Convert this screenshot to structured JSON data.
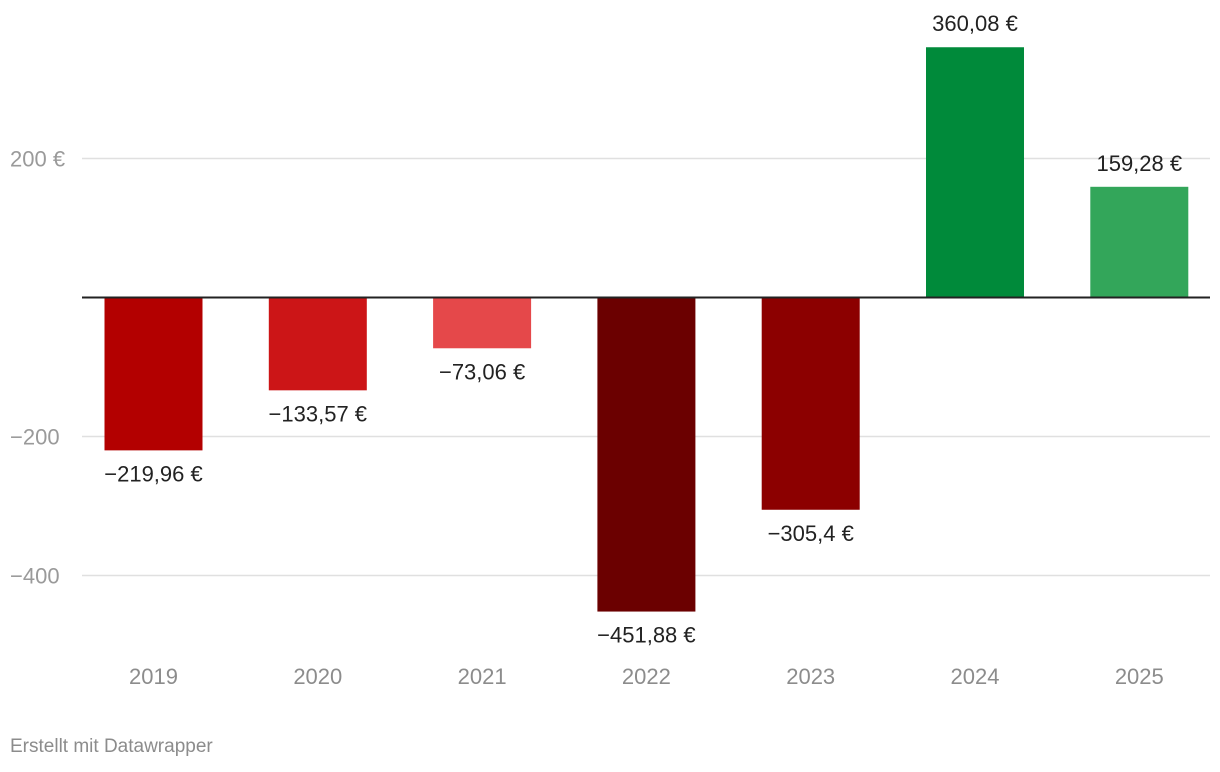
{
  "chart_data": {
    "type": "bar",
    "categories": [
      "2019",
      "2020",
      "2021",
      "2022",
      "2023",
      "2024",
      "2025"
    ],
    "values": [
      -219.96,
      -133.57,
      -73.06,
      -451.88,
      -305.4,
      360.08,
      159.28
    ],
    "value_labels": [
      "−219,96 €",
      "−133,57 €",
      "−73,06 €",
      "−451,88 €",
      "−305,4 €",
      "360,08 €",
      "159,28 €"
    ],
    "bar_colors": [
      "#b30000",
      "#cc1517",
      "#e5484a",
      "#6b0000",
      "#8c0000",
      "#008a3a",
      "#33a65a"
    ],
    "y_ticks": [
      200,
      -200,
      -400
    ],
    "y_tick_labels": [
      "200 €",
      "−200",
      "−400"
    ],
    "ylim": [
      -480,
      390
    ],
    "grid": true,
    "legend": "none",
    "title": "",
    "xlabel": "",
    "ylabel": ""
  },
  "footer": {
    "credit": "Erstellt mit Datawrapper"
  }
}
